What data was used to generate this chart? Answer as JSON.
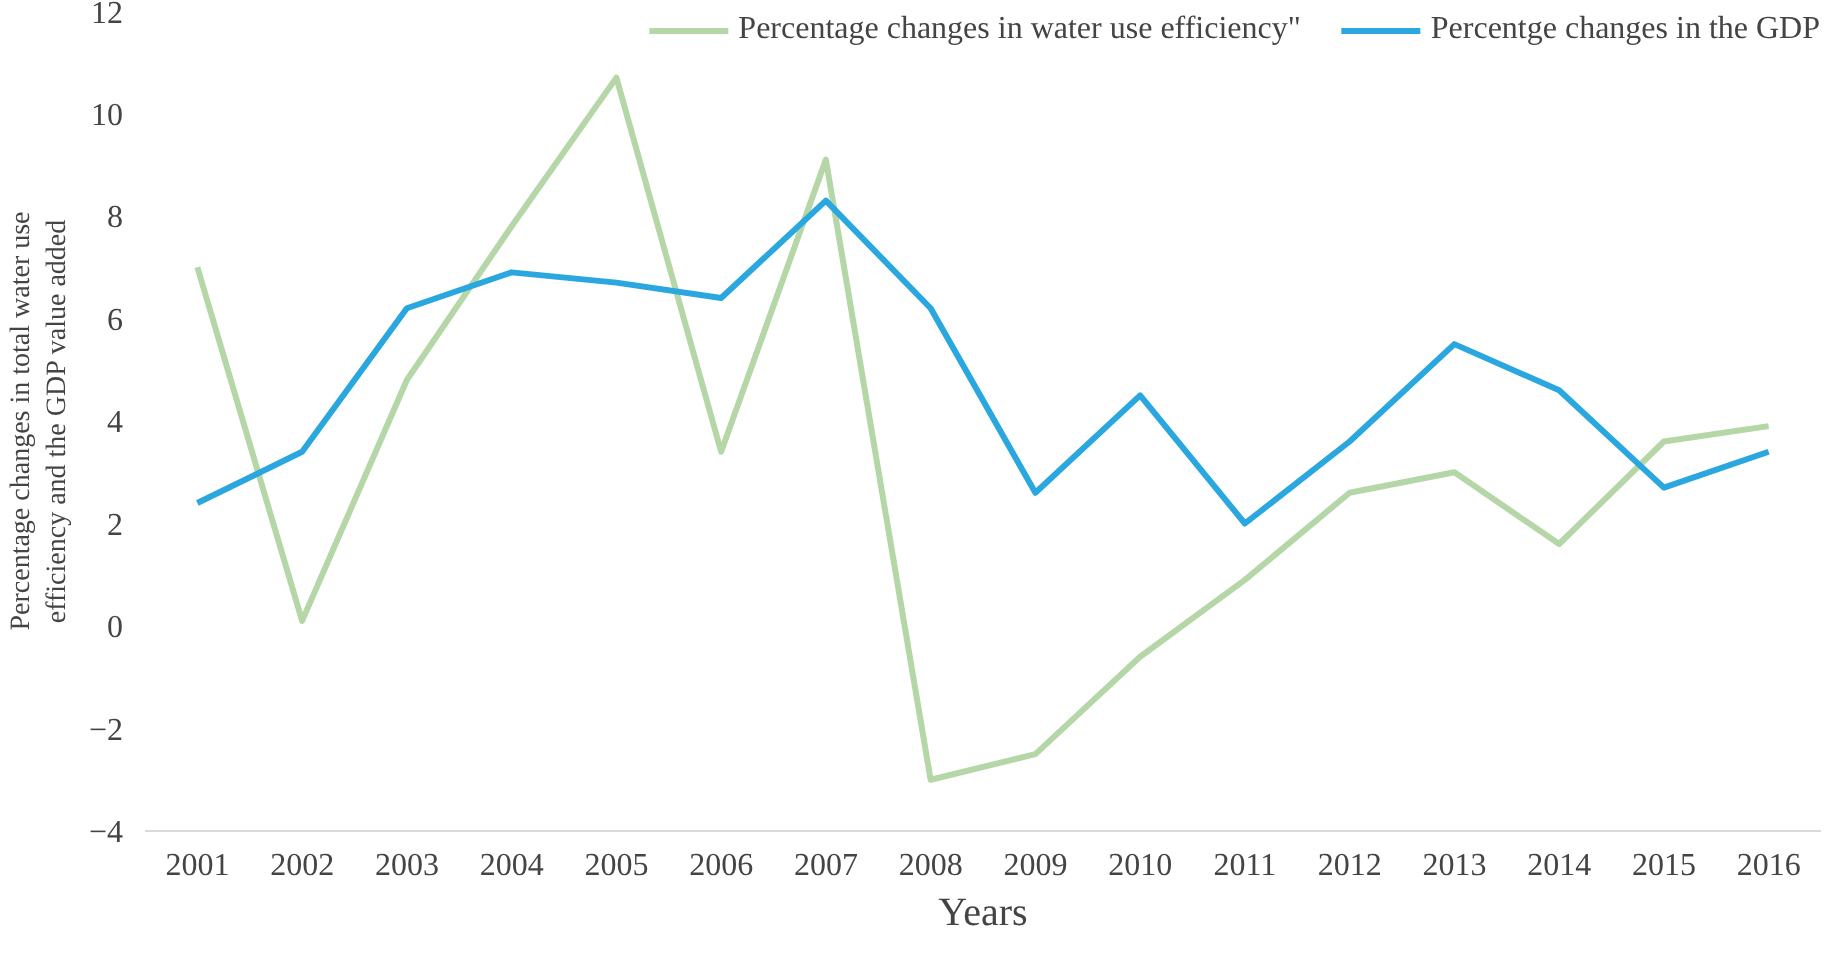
{
  "chart_data": {
    "type": "line",
    "xlabel": "Years",
    "ylabel": "Percentage changes in total water use efficiency and the GDP value added",
    "categories": [
      "2001",
      "2002",
      "2003",
      "2004",
      "2005",
      "2006",
      "2007",
      "2008",
      "2009",
      "2010",
      "2011",
      "2012",
      "2013",
      "2014",
      "2015",
      "2016"
    ],
    "series": [
      {
        "name": "Percentage changes in water use efficiency\"",
        "color": "#b5d6a7",
        "values": [
          7.0,
          0.1,
          4.8,
          7.8,
          10.7,
          3.4,
          9.1,
          -3.0,
          -2.5,
          -0.6,
          0.9,
          2.6,
          3.0,
          1.6,
          3.6,
          3.9
        ]
      },
      {
        "name": "Percentge changes in the GDP",
        "color": "#2aa7df",
        "values": [
          2.4,
          3.4,
          6.2,
          6.9,
          6.7,
          6.4,
          8.3,
          6.2,
          2.6,
          4.5,
          2.0,
          3.6,
          5.5,
          4.6,
          2.7,
          3.4
        ]
      }
    ],
    "ylim": [
      -4,
      12
    ],
    "yticks": [
      -4,
      -2,
      0,
      2,
      4,
      6,
      8,
      10,
      12
    ],
    "grid": false,
    "legend": "top right",
    "marker": "none",
    "line_style": "solid"
  }
}
